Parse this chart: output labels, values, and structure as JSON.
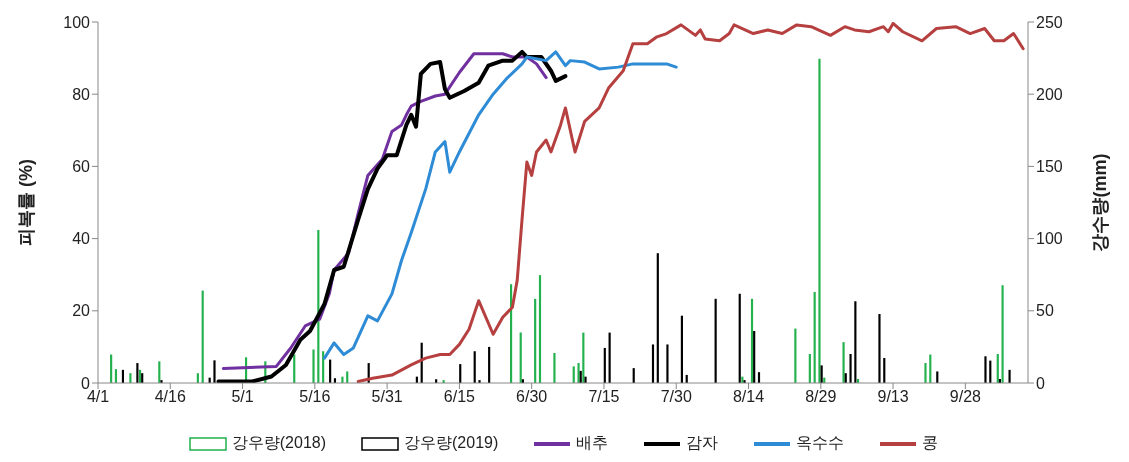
{
  "chart_data": {
    "type": "line",
    "ylabel": "피복률 (%)",
    "y2label": "강수량(mm)",
    "xlim": [
      "--04-01",
      "--10-11"
    ],
    "xticks": [
      {
        "value": "--04-01",
        "label": "4/1"
      },
      {
        "value": "--04-16",
        "label": "4/16"
      },
      {
        "value": "--05-01",
        "label": "5/1"
      },
      {
        "value": "--05-16",
        "label": "5/16"
      },
      {
        "value": "--05-31",
        "label": "5/31"
      },
      {
        "value": "--06-15",
        "label": "6/15"
      },
      {
        "value": "--06-30",
        "label": "6/30"
      },
      {
        "value": "--07-15",
        "label": "7/15"
      },
      {
        "value": "--07-30",
        "label": "7/30"
      },
      {
        "value": "--08-14",
        "label": "8/14"
      },
      {
        "value": "--08-29",
        "label": "8/29"
      },
      {
        "value": "--09-13",
        "label": "9/13"
      },
      {
        "value": "--09-28",
        "label": "9/28"
      }
    ],
    "ylim": [
      0,
      100
    ],
    "yticks": [
      0,
      20,
      40,
      60,
      80,
      100
    ],
    "y2lim": [
      0,
      250
    ],
    "y2ticks": [
      0,
      50,
      100,
      150,
      200,
      250
    ],
    "grid": false,
    "legend": "bottom",
    "series": [
      {
        "name": "강우량(2018)",
        "type": "bar",
        "axis": "y2",
        "color": "#22b14c",
        "x": [
          "--04-04",
          "--04-05",
          "--04-08",
          "--04-10",
          "--04-14",
          "--04-22",
          "--04-23",
          "--05-02",
          "--05-06",
          "--05-12",
          "--05-16",
          "--05-17",
          "--05-18",
          "--05-22",
          "--05-23",
          "--06-12",
          "--06-26",
          "--06-28",
          "--07-01",
          "--07-02",
          "--07-05",
          "--07-09",
          "--07-10",
          "--07-11",
          "--08-13",
          "--08-15",
          "--08-24",
          "--08-27",
          "--08-28",
          "--08-29",
          "--08-30",
          "--09-03",
          "--09-06",
          "--09-20",
          "--09-21",
          "--10-05",
          "--10-06"
        ],
        "values": [
          19.7,
          9.6,
          6.8,
          9.1,
          15,
          6.8,
          64,
          17.8,
          15,
          19.7,
          23.2,
          106,
          22,
          4.4,
          8,
          2,
          68.4,
          34.9,
          58.3,
          74.7,
          20.8,
          11.5,
          13.8,
          34.9,
          4.4,
          58.3,
          37.7,
          20.1,
          63,
          224.5,
          3.7,
          28.3,
          2.8,
          13.8,
          19.7,
          20.1,
          67.7
        ]
      },
      {
        "name": "강우량(2019)",
        "type": "bar",
        "axis": "y2",
        "color": "#000000",
        "x": [
          "--04-06",
          "--04-09",
          "--04-10",
          "--04-14",
          "--04-24",
          "--04-25",
          "--04-26",
          "--05-19",
          "--05-20",
          "--05-27",
          "--06-06",
          "--06-07",
          "--06-10",
          "--06-15",
          "--06-18",
          "--06-19",
          "--06-21",
          "--06-28",
          "--07-10",
          "--07-11",
          "--07-15",
          "--07-16",
          "--07-21",
          "--07-25",
          "--07-26",
          "--07-28",
          "--07-31",
          "--08-01",
          "--08-07",
          "--08-12",
          "--08-13",
          "--08-15",
          "--08-16",
          "--08-29",
          "--09-03",
          "--09-04",
          "--09-05",
          "--09-10",
          "--09-11",
          "--09-22",
          "--10-02",
          "--10-03",
          "--10-05",
          "--10-07"
        ],
        "values": [
          9.1,
          13.8,
          6.8,
          2,
          3.7,
          15.7,
          null,
          16.2,
          3.3,
          13.8,
          4.4,
          27.9,
          2.6,
          13.1,
          22,
          2,
          25,
          2.6,
          8.4,
          4.4,
          24.3,
          34.9,
          10.3,
          26.7,
          89.9,
          26.7,
          46.6,
          5.6,
          58.3,
          61.8,
          2,
          36,
          7.5,
          12.2,
          6.8,
          20.1,
          56.6,
          47.8,
          17.3,
          8,
          18.5,
          15.5,
          2.8,
          9.1
        ]
      },
      {
        "name": "배추",
        "color": "#7030a0",
        "x": [
          "--04-27",
          "--05-08",
          "--05-11",
          "--05-14",
          "--05-17",
          "--05-19",
          "--05-20",
          "--05-23",
          "--05-25",
          "--05-27",
          "--05-30",
          "--06-01",
          "--06-03",
          "--06-04",
          "--06-05",
          "--06-07",
          "--06-10",
          "--06-12",
          "--06-15",
          "--06-18",
          "--06-24",
          "--06-26",
          "--06-29",
          "--07-01",
          "--07-03"
        ],
        "values": [
          4,
          4.6,
          9.7,
          15.8,
          17.7,
          24.7,
          31.3,
          36,
          47,
          57.5,
          62,
          69.7,
          71.5,
          74.3,
          76.7,
          78,
          79.5,
          80,
          86,
          91.2,
          91.2,
          90.3,
          90.3,
          88.4,
          84.6
        ]
      },
      {
        "name": "감자",
        "color": "#000000",
        "x": [
          "--04-26",
          "--05-03",
          "--05-07",
          "--05-10",
          "--05-13",
          "--05-15",
          "--05-18",
          "--05-20",
          "--05-22",
          "--05-25",
          "--05-27",
          "--05-29",
          "--05-31",
          "--06-02",
          "--06-04",
          "--06-05",
          "--06-06",
          "--06-07",
          "--06-09",
          "--06-11",
          "--06-12",
          "--06-13",
          "--06-16",
          "--06-19",
          "--06-21",
          "--06-24",
          "--06-26",
          "--06-28",
          "--06-29",
          "--07-02",
          "--07-04",
          "--07-05",
          "--07-07"
        ],
        "values": [
          0.4,
          0.4,
          1.8,
          5,
          12,
          14.4,
          21.9,
          31.3,
          32.2,
          45.3,
          53.7,
          59.4,
          63.1,
          63.1,
          71.5,
          74.3,
          71,
          85.6,
          88.4,
          88.9,
          81.4,
          79,
          80.9,
          83.2,
          87.9,
          89.3,
          89.3,
          91.7,
          90.3,
          90.3,
          86.5,
          83.7,
          85
        ]
      },
      {
        "name": "옥수수",
        "color": "#2e8bd6",
        "x": [
          "--05-18",
          "--05-20",
          "--05-22",
          "--05-24",
          "--05-27",
          "--05-29",
          "--06-01",
          "--06-03",
          "--06-05",
          "--06-08",
          "--06-10",
          "--06-12",
          "--06-13",
          "--06-15",
          "--06-19",
          "--06-22",
          "--06-25",
          "--06-28",
          "--06-29",
          "--07-03",
          "--07-05",
          "--07-07",
          "--07-08",
          "--07-11",
          "--07-14",
          "--07-18",
          "--07-21",
          "--07-25",
          "--07-28",
          "--07-30"
        ],
        "values": [
          6.9,
          11.1,
          7.9,
          9.7,
          18.6,
          17.2,
          24.7,
          34,
          41.6,
          53.7,
          64,
          66.9,
          58.4,
          64,
          74.3,
          80,
          84.6,
          88.4,
          90.3,
          89.3,
          91.7,
          87.9,
          89.3,
          88.9,
          87,
          87.5,
          88.4,
          88.4,
          88.4,
          87.5
        ]
      },
      {
        "name": "콩",
        "color": "#b5403f",
        "x": [
          "--05-25",
          "--05-28",
          "--06-01",
          "--06-05",
          "--06-08",
          "--06-11",
          "--06-13",
          "--06-15",
          "--06-17",
          "--06-19",
          "--06-22",
          "--06-24",
          "--06-26",
          "--06-27",
          "--06-28",
          "--06-29",
          "--06-30",
          "--07-01",
          "--07-03",
          "--07-04",
          "--07-06",
          "--07-07",
          "--07-09",
          "--07-11",
          "--07-14",
          "--07-16",
          "--07-19",
          "--07-21",
          "--07-24",
          "--07-26",
          "--07-28",
          "--07-31",
          "--08-03",
          "--08-04",
          "--08-05",
          "--08-08",
          "--08-10",
          "--08-11",
          "--08-15",
          "--08-18",
          "--08-21",
          "--08-24",
          "--08-27",
          "--08-31",
          "--09-03",
          "--09-05",
          "--09-08",
          "--09-11",
          "--09-12",
          "--09-13",
          "--09-15",
          "--09-19",
          "--09-22",
          "--09-26",
          "--09-29",
          "--10-02",
          "--10-04",
          "--10-06",
          "--10-08",
          "--10-10"
        ],
        "values": [
          0.4,
          1.3,
          2.2,
          5,
          6.9,
          7.9,
          7.9,
          10.7,
          14.9,
          22.8,
          13.5,
          18.2,
          21,
          28.5,
          45.3,
          61.2,
          57.5,
          64,
          67.3,
          64,
          71.5,
          76.2,
          64,
          72.5,
          76.2,
          81.8,
          86.5,
          94,
          94,
          95.9,
          96.8,
          99.2,
          96.3,
          97.8,
          95.3,
          94.8,
          96.8,
          99.2,
          96.8,
          97.8,
          96.8,
          99.2,
          98.7,
          96.3,
          98.7,
          97.8,
          97.3,
          98.7,
          97.3,
          99.6,
          97.3,
          94.8,
          98.2,
          98.7,
          96.8,
          98.2,
          94.8,
          94.8,
          96.8,
          92.6
        ]
      }
    ]
  }
}
